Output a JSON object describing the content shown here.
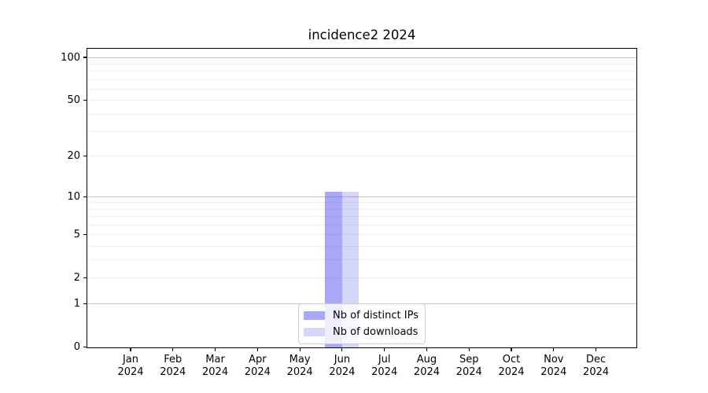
{
  "chart_data": {
    "type": "bar",
    "title": "incidence2 2024",
    "x_categories": [
      {
        "month": "Jan",
        "year": "2024"
      },
      {
        "month": "Feb",
        "year": "2024"
      },
      {
        "month": "Mar",
        "year": "2024"
      },
      {
        "month": "Apr",
        "year": "2024"
      },
      {
        "month": "May",
        "year": "2024"
      },
      {
        "month": "Jun",
        "year": "2024"
      },
      {
        "month": "Jul",
        "year": "2024"
      },
      {
        "month": "Aug",
        "year": "2024"
      },
      {
        "month": "Sep",
        "year": "2024"
      },
      {
        "month": "Oct",
        "year": "2024"
      },
      {
        "month": "Nov",
        "year": "2024"
      },
      {
        "month": "Dec",
        "year": "2024"
      }
    ],
    "series": [
      {
        "name": "Nb of distinct IPs",
        "color": "rgba(82,82,238,0.5)",
        "solid_hex": "#a9a9fa",
        "values": [
          0,
          0,
          0,
          0,
          0,
          11,
          0,
          0,
          0,
          0,
          0,
          0
        ]
      },
      {
        "name": "Nb of downloads",
        "color": "rgba(82,82,238,0.24)",
        "solid_hex": "#dbdbfb",
        "values": [
          0,
          0,
          0,
          0,
          0,
          11,
          0,
          0,
          0,
          0,
          0,
          0
        ]
      }
    ],
    "y_scale": "log1p",
    "y_axis_tick_labels": [
      "100",
      "50",
      "20",
      "10",
      "5",
      "2",
      "1",
      "0"
    ],
    "y_ticks": [
      100,
      50,
      20,
      10,
      5,
      2,
      1,
      0
    ],
    "y_max": 115,
    "ylim": [
      0,
      115
    ],
    "major_gridlines": [
      1,
      10,
      100
    ],
    "minor_gridlines": [
      2,
      3,
      4,
      5,
      6,
      7,
      8,
      9,
      20,
      30,
      40,
      50,
      60,
      70,
      80,
      90
    ],
    "grid": "on",
    "legend_position": "lower center",
    "legend_items": [
      "Nb of distinct IPs",
      "Nb of downloads"
    ],
    "colors": {
      "bar_distinct_ips": "#a9a9fa",
      "bar_downloads": "#dbdbfb",
      "major_grid": "#c2c2c2",
      "minor_grid": "#ededed",
      "spine": "#000000",
      "legend_border": "#cccccc"
    }
  }
}
